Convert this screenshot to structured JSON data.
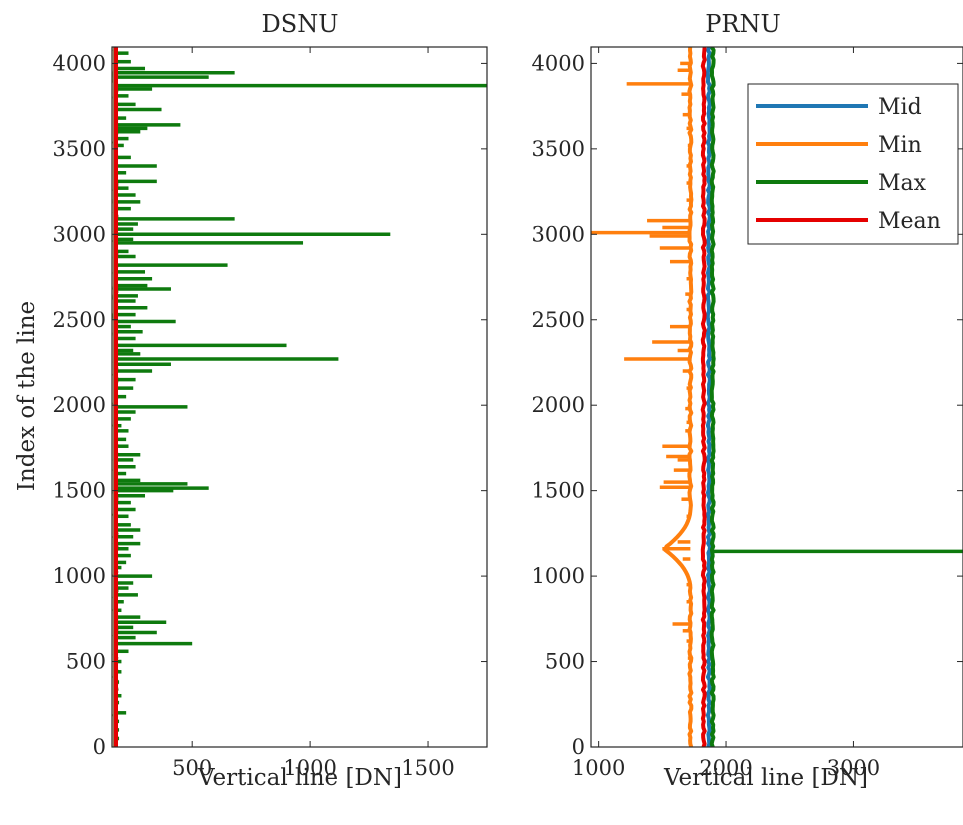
{
  "figure": {
    "ylabel": "Index of the line"
  },
  "chart_data": [
    {
      "type": "line",
      "title": "DSNU",
      "xlabel": "Vertical line [DN]",
      "ylabel": "Index of the line",
      "xlim": [
        160,
        1750
      ],
      "ylim": [
        0,
        4096
      ],
      "xticks": [
        500,
        1000,
        1500
      ],
      "yticks": [
        0,
        500,
        1000,
        1500,
        2000,
        2500,
        3000,
        3500,
        4000
      ],
      "grid": false,
      "legend": "none",
      "series": [
        {
          "name": "Max",
          "color": "#0e7a0e",
          "base": 175,
          "spikes": [
            [
              4060,
              230
            ],
            [
              4010,
              240
            ],
            [
              3970,
              300
            ],
            [
              3945,
              680
            ],
            [
              3920,
              570
            ],
            [
              3870,
              1750
            ],
            [
              3850,
              330
            ],
            [
              3810,
              230
            ],
            [
              3760,
              260
            ],
            [
              3730,
              370
            ],
            [
              3680,
              220
            ],
            [
              3640,
              450
            ],
            [
              3620,
              310
            ],
            [
              3600,
              280
            ],
            [
              3560,
              230
            ],
            [
              3520,
              210
            ],
            [
              3450,
              240
            ],
            [
              3400,
              350
            ],
            [
              3360,
              220
            ],
            [
              3310,
              350
            ],
            [
              3270,
              230
            ],
            [
              3230,
              260
            ],
            [
              3190,
              280
            ],
            [
              3150,
              240
            ],
            [
              3090,
              680
            ],
            [
              3060,
              270
            ],
            [
              3030,
              250
            ],
            [
              3000,
              1340
            ],
            [
              2970,
              250
            ],
            [
              2950,
              970
            ],
            [
              2900,
              230
            ],
            [
              2870,
              260
            ],
            [
              2820,
              650
            ],
            [
              2780,
              300
            ],
            [
              2740,
              330
            ],
            [
              2700,
              310
            ],
            [
              2680,
              410
            ],
            [
              2640,
              270
            ],
            [
              2610,
              260
            ],
            [
              2570,
              310
            ],
            [
              2530,
              260
            ],
            [
              2490,
              430
            ],
            [
              2460,
              240
            ],
            [
              2430,
              290
            ],
            [
              2390,
              260
            ],
            [
              2350,
              900
            ],
            [
              2320,
              250
            ],
            [
              2300,
              280
            ],
            [
              2270,
              1120
            ],
            [
              2240,
              410
            ],
            [
              2200,
              330
            ],
            [
              2150,
              260
            ],
            [
              2100,
              250
            ],
            [
              2050,
              220
            ],
            [
              1990,
              480
            ],
            [
              1960,
              260
            ],
            [
              1920,
              240
            ],
            [
              1880,
              200
            ],
            [
              1850,
              230
            ],
            [
              1800,
              220
            ],
            [
              1760,
              230
            ],
            [
              1710,
              280
            ],
            [
              1680,
              250
            ],
            [
              1640,
              260
            ],
            [
              1600,
              220
            ],
            [
              1560,
              280
            ],
            [
              1540,
              480
            ],
            [
              1515,
              570
            ],
            [
              1500,
              420
            ],
            [
              1470,
              300
            ],
            [
              1430,
              240
            ],
            [
              1390,
              260
            ],
            [
              1350,
              230
            ],
            [
              1300,
              240
            ],
            [
              1270,
              280
            ],
            [
              1230,
              250
            ],
            [
              1190,
              280
            ],
            [
              1160,
              230
            ],
            [
              1120,
              240
            ],
            [
              1080,
              220
            ],
            [
              1050,
              200
            ],
            [
              1000,
              330
            ],
            [
              960,
              250
            ],
            [
              930,
              230
            ],
            [
              890,
              270
            ],
            [
              850,
              210
            ],
            [
              800,
              200
            ],
            [
              760,
              280
            ],
            [
              730,
              390
            ],
            [
              700,
              250
            ],
            [
              670,
              350
            ],
            [
              640,
              260
            ],
            [
              605,
              500
            ],
            [
              560,
              230
            ],
            [
              500,
              200
            ],
            [
              440,
              200
            ],
            [
              380,
              190
            ],
            [
              300,
              200
            ],
            [
              260,
              190
            ],
            [
              200,
              220
            ],
            [
              150,
              190
            ],
            [
              100,
              190
            ],
            [
              50,
              190
            ]
          ]
        },
        {
          "name": "Min",
          "color": "#ff7f0e",
          "value": 172
        },
        {
          "name": "Mid",
          "color": "#1f77b4",
          "value": 175
        },
        {
          "name": "Mean",
          "color": "#e50000",
          "value": 177
        }
      ]
    },
    {
      "type": "line",
      "title": "PRNU",
      "xlabel": "Vertical line [DN]",
      "ylabel": "",
      "xlim": [
        940,
        3860
      ],
      "ylim": [
        0,
        4096
      ],
      "xticks": [
        1000,
        2000,
        3000
      ],
      "yticks": [
        0,
        500,
        1000,
        1500,
        2000,
        2500,
        3000,
        3500,
        4000
      ],
      "grid": false,
      "legend": "top-right",
      "series": [
        {
          "name": "Mid",
          "color": "#1f77b4",
          "base": 1865
        },
        {
          "name": "Min",
          "color": "#ff7f0e",
          "base": 1720,
          "spikes": [
            [
              4000,
              1640
            ],
            [
              3960,
              1620
            ],
            [
              3880,
              1220
            ],
            [
              3820,
              1650
            ],
            [
              3700,
              1660
            ],
            [
              3620,
              1690
            ],
            [
              3520,
              1700
            ],
            [
              3400,
              1690
            ],
            [
              3300,
              1690
            ],
            [
              3200,
              1690
            ],
            [
              3080,
              1380
            ],
            [
              3040,
              1500
            ],
            [
              3010,
              940
            ],
            [
              2990,
              1400
            ],
            [
              2920,
              1480
            ],
            [
              2840,
              1560
            ],
            [
              2740,
              1690
            ],
            [
              2650,
              1680
            ],
            [
              2560,
              1690
            ],
            [
              2460,
              1560
            ],
            [
              2370,
              1420
            ],
            [
              2320,
              1620
            ],
            [
              2270,
              1200
            ],
            [
              2200,
              1660
            ],
            [
              2100,
              1690
            ],
            [
              1980,
              1680
            ],
            [
              1900,
              1690
            ],
            [
              1850,
              1680
            ],
            [
              1760,
              1500
            ],
            [
              1700,
              1530
            ],
            [
              1680,
              1620
            ],
            [
              1620,
              1590
            ],
            [
              1550,
              1510
            ],
            [
              1520,
              1480
            ],
            [
              1450,
              1650
            ],
            [
              1350,
              1690
            ],
            [
              1200,
              1620
            ],
            [
              1160,
              1500
            ],
            [
              1100,
              1660
            ],
            [
              950,
              1690
            ],
            [
              850,
              1690
            ],
            [
              720,
              1580
            ],
            [
              680,
              1660
            ],
            [
              620,
              1690
            ],
            [
              520,
              1700
            ],
            [
              420,
              1710
            ]
          ],
          "bump": {
            "center": 1160,
            "halfwidth": 230,
            "value": 1510
          }
        },
        {
          "name": "Max",
          "color": "#0e7a0e",
          "base": 1895,
          "spikes": [
            [
              1145,
              3860
            ]
          ]
        },
        {
          "name": "Mean",
          "color": "#e50000",
          "base": 1825
        }
      ]
    }
  ],
  "legend": {
    "entries": [
      {
        "label": "Mid",
        "color": "#1f77b4"
      },
      {
        "label": "Min",
        "color": "#ff7f0e"
      },
      {
        "label": "Max",
        "color": "#0e7a0e"
      },
      {
        "label": "Mean",
        "color": "#e50000"
      }
    ]
  }
}
